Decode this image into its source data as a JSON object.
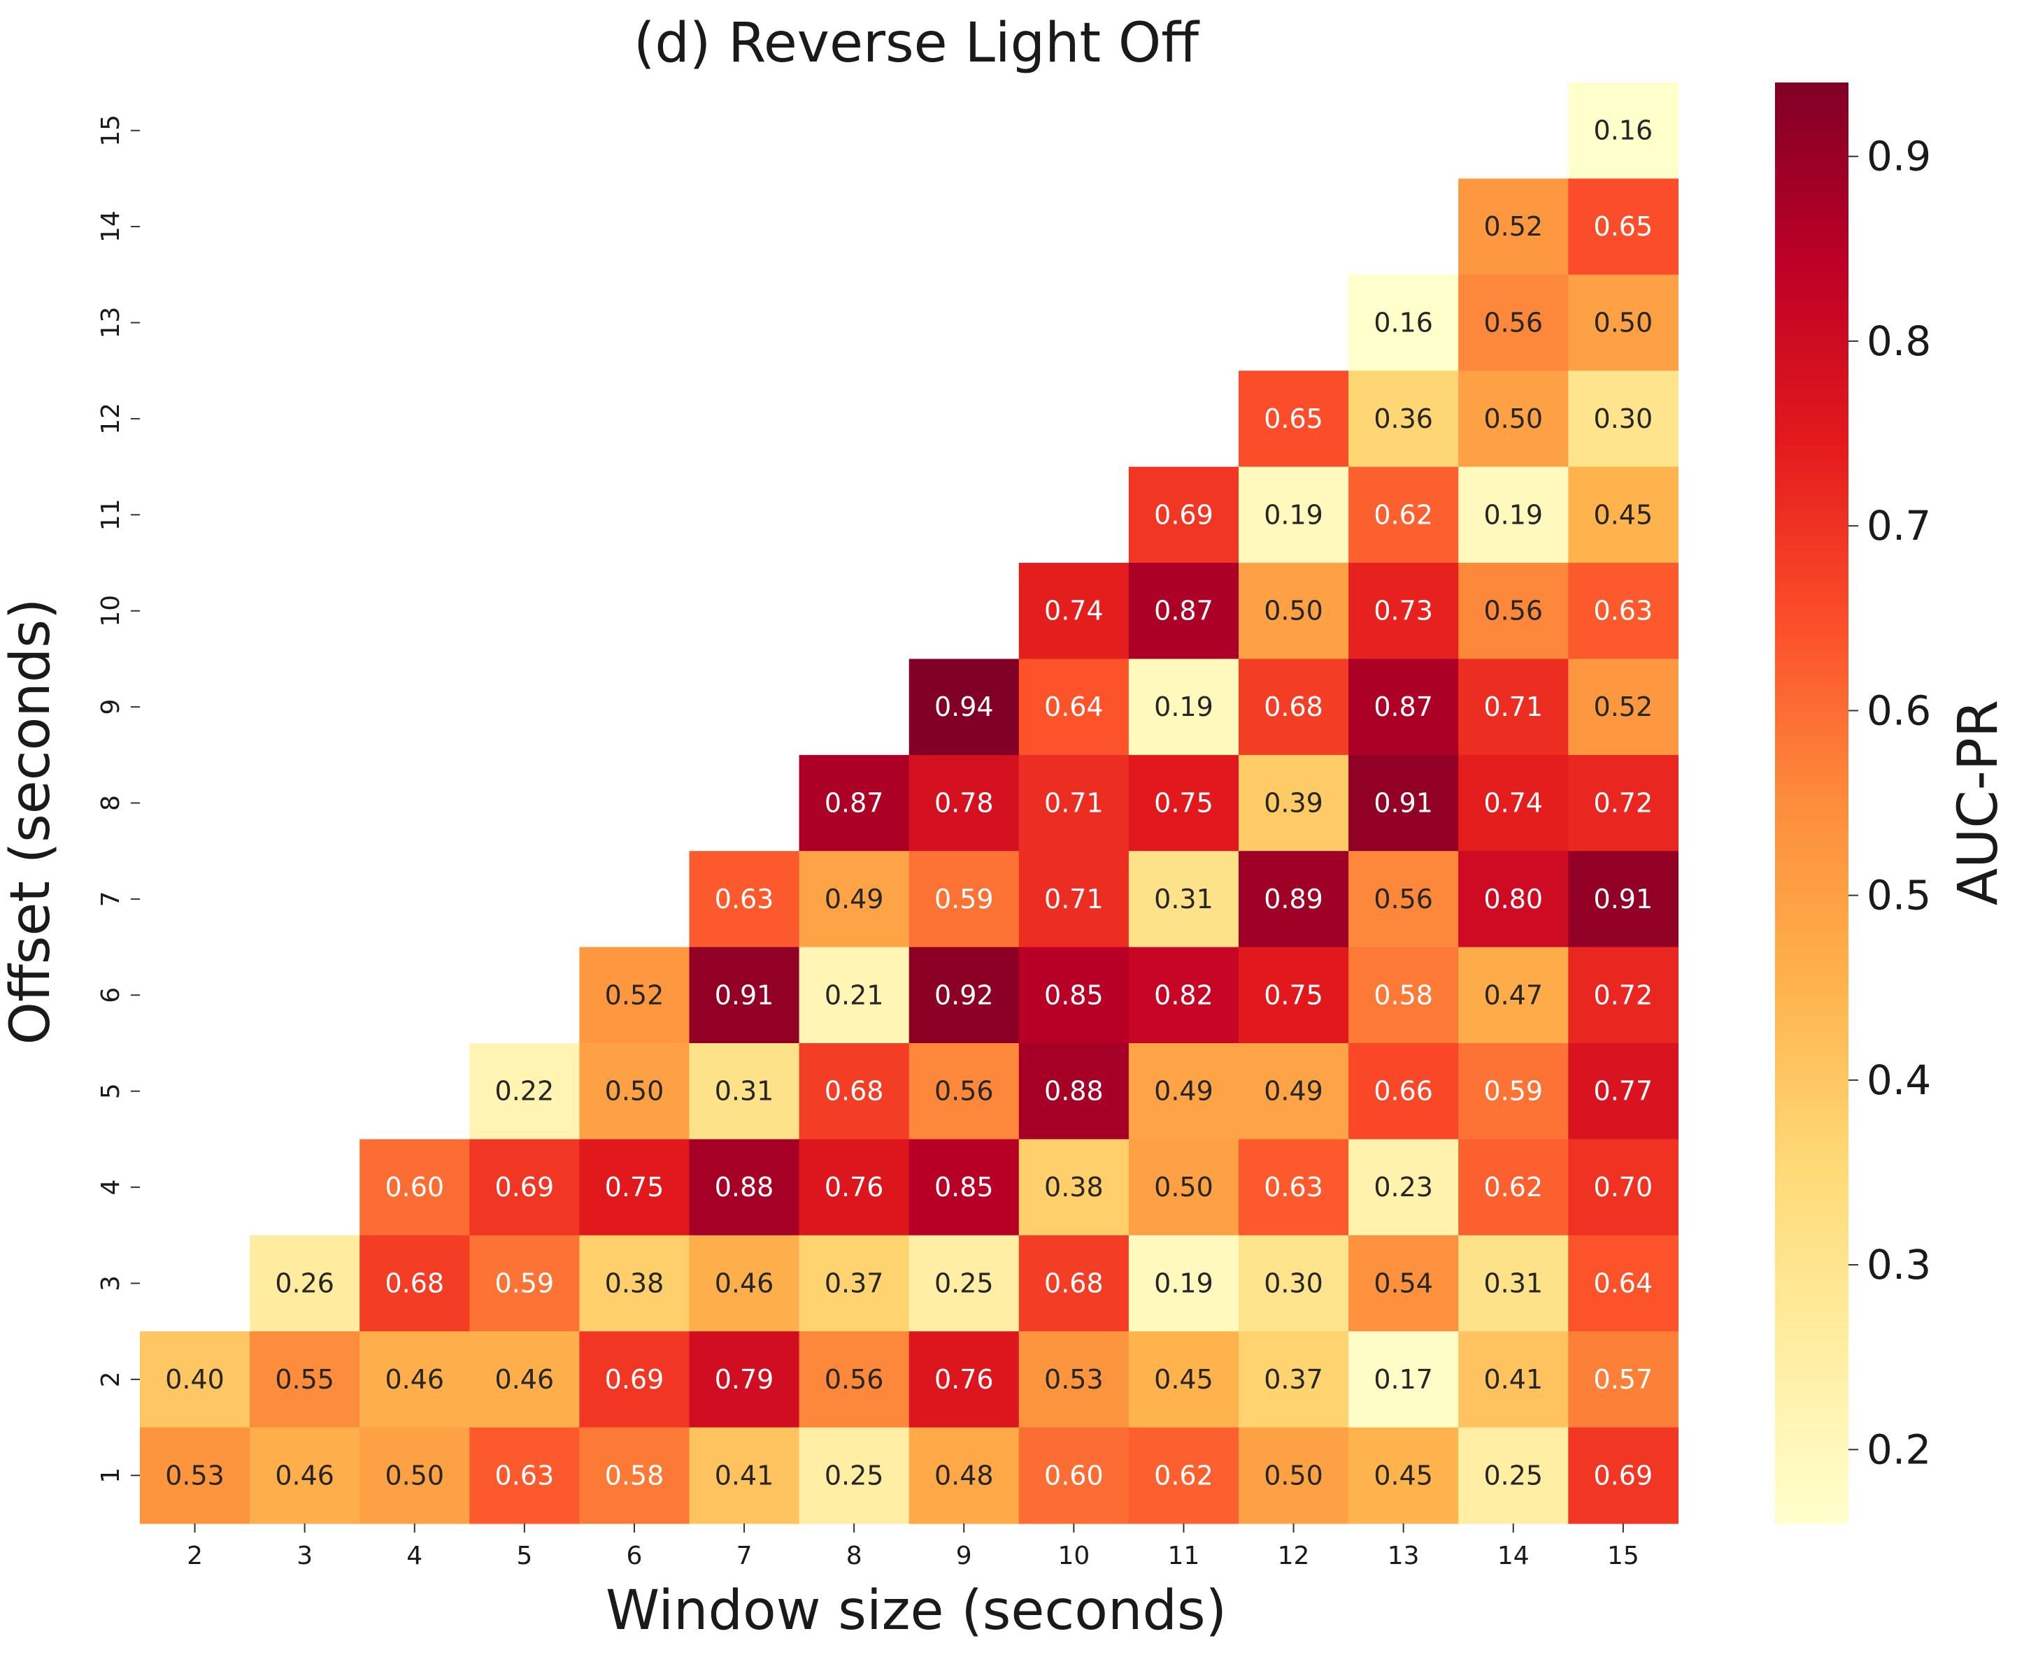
{
  "chart_data": {
    "type": "heatmap",
    "title": "(d) Reverse Light Off",
    "xlabel": "Window size (seconds)",
    "ylabel": "Offset (seconds)",
    "colorbar_label": "AUC-PR",
    "colormap": "YlOrRd",
    "vmin": 0.16,
    "vmax": 0.94,
    "colorbar_ticks": [
      "0.2",
      "0.3",
      "0.4",
      "0.5",
      "0.6",
      "0.7",
      "0.8",
      "0.9"
    ],
    "x_categories": [
      "2",
      "3",
      "4",
      "5",
      "6",
      "7",
      "8",
      "9",
      "10",
      "11",
      "12",
      "13",
      "14",
      "15"
    ],
    "y_categories": [
      "15",
      "14",
      "13",
      "12",
      "11",
      "10",
      "9",
      "8",
      "7",
      "6",
      "5",
      "4",
      "3",
      "2",
      "1"
    ],
    "values": [
      [
        null,
        null,
        null,
        null,
        null,
        null,
        null,
        null,
        null,
        null,
        null,
        null,
        null,
        0.16
      ],
      [
        null,
        null,
        null,
        null,
        null,
        null,
        null,
        null,
        null,
        null,
        null,
        null,
        0.52,
        0.65
      ],
      [
        null,
        null,
        null,
        null,
        null,
        null,
        null,
        null,
        null,
        null,
        null,
        0.16,
        0.56,
        0.5
      ],
      [
        null,
        null,
        null,
        null,
        null,
        null,
        null,
        null,
        null,
        null,
        0.65,
        0.36,
        0.5,
        0.3
      ],
      [
        null,
        null,
        null,
        null,
        null,
        null,
        null,
        null,
        null,
        0.69,
        0.19,
        0.62,
        0.19,
        0.45
      ],
      [
        null,
        null,
        null,
        null,
        null,
        null,
        null,
        null,
        0.74,
        0.87,
        0.5,
        0.73,
        0.56,
        0.63
      ],
      [
        null,
        null,
        null,
        null,
        null,
        null,
        null,
        0.94,
        0.64,
        0.19,
        0.68,
        0.87,
        0.71,
        0.52
      ],
      [
        null,
        null,
        null,
        null,
        null,
        null,
        0.87,
        0.78,
        0.71,
        0.75,
        0.39,
        0.91,
        0.74,
        0.72
      ],
      [
        null,
        null,
        null,
        null,
        null,
        0.63,
        0.49,
        0.59,
        0.71,
        0.31,
        0.89,
        0.56,
        0.8,
        0.91
      ],
      [
        null,
        null,
        null,
        null,
        0.52,
        0.91,
        0.21,
        0.92,
        0.85,
        0.82,
        0.75,
        0.58,
        0.47,
        0.72
      ],
      [
        null,
        null,
        null,
        0.22,
        0.5,
        0.31,
        0.68,
        0.56,
        0.88,
        0.49,
        0.49,
        0.66,
        0.59,
        0.77
      ],
      [
        null,
        null,
        0.6,
        0.69,
        0.75,
        0.88,
        0.76,
        0.85,
        0.38,
        0.5,
        0.63,
        0.23,
        0.62,
        0.7
      ],
      [
        null,
        0.26,
        0.68,
        0.59,
        0.38,
        0.46,
        0.37,
        0.25,
        0.68,
        0.19,
        0.3,
        0.54,
        0.31,
        0.64
      ],
      [
        0.4,
        0.55,
        0.46,
        0.46,
        0.69,
        0.79,
        0.56,
        0.76,
        0.53,
        0.45,
        0.37,
        0.17,
        0.41,
        0.57
      ],
      [
        0.53,
        0.46,
        0.5,
        0.63,
        0.58,
        0.41,
        0.25,
        0.48,
        0.6,
        0.62,
        0.5,
        0.45,
        0.25,
        0.69
      ]
    ]
  }
}
